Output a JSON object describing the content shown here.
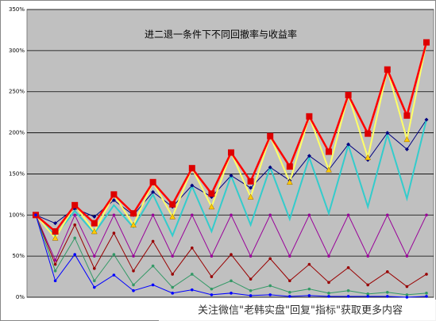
{
  "chart_data": {
    "type": "line",
    "title": "进二退一条件下不同回撤率与收益率",
    "watermark": "关注微信\"老韩实盘\"回复\"指标\"获取更多内容",
    "categories": [
      null,
      null,
      null,
      null,
      null,
      null,
      null,
      null,
      null,
      null,
      null,
      null,
      null,
      null,
      null,
      null,
      null,
      null,
      null,
      null,
      null
    ],
    "ylim": [
      0,
      350
    ],
    "yticks": [
      {
        "value": 0,
        "label": "0%"
      },
      {
        "value": 50,
        "label": "50%"
      },
      {
        "value": 100,
        "label": "100%"
      },
      {
        "value": 150,
        "label": "150%"
      },
      {
        "value": 200,
        "label": "200%"
      },
      {
        "value": 250,
        "label": "250%"
      },
      {
        "value": 300,
        "label": "300%"
      },
      {
        "value": 350,
        "label": "350%"
      }
    ],
    "grid": true,
    "series": [
      {
        "color": "#000080",
        "marker": "diamond",
        "values": [
          100,
          90,
          108,
          98,
          118,
          100,
          128,
          110,
          136,
          122,
          148,
          133,
          158,
          142,
          172,
          155,
          186,
          167,
          200,
          180,
          216
        ]
      },
      {
        "color": "#33cccc",
        "marker": "none",
        "values": [
          100,
          75,
          105,
          78,
          112,
          85,
          125,
          75,
          135,
          80,
          148,
          88,
          158,
          95,
          170,
          102,
          185,
          110,
          198,
          120,
          216
        ]
      },
      {
        "color": "#ffff66",
        "marker": "triangle",
        "values": [
          100,
          72,
          112,
          80,
          125,
          88,
          140,
          98,
          157,
          110,
          176,
          122,
          196,
          140,
          220,
          155,
          246,
          170,
          277,
          192,
          310
        ]
      },
      {
        "color": "#ff0000",
        "marker": "square",
        "values": [
          100,
          80,
          112,
          90,
          125,
          102,
          140,
          113,
          157,
          126,
          176,
          141,
          196,
          159,
          220,
          177,
          246,
          199,
          277,
          221,
          310
        ]
      },
      {
        "color": "#990099",
        "marker": "dot",
        "values": [
          100,
          45,
          100,
          50,
          100,
          50,
          100,
          50,
          100,
          50,
          100,
          50,
          100,
          50,
          100,
          50,
          100,
          50,
          100,
          50,
          100
        ]
      },
      {
        "color": "#990000",
        "marker": "dot",
        "values": [
          100,
          40,
          88,
          35,
          78,
          32,
          68,
          28,
          60,
          25,
          52,
          22,
          47,
          20,
          40,
          18,
          36,
          15,
          31,
          13,
          28
        ]
      },
      {
        "color": "#339966",
        "marker": "dot",
        "values": [
          100,
          32,
          72,
          20,
          52,
          15,
          38,
          12,
          28,
          10,
          20,
          8,
          14,
          6,
          10,
          5,
          8,
          4,
          6,
          3,
          5
        ]
      },
      {
        "color": "#0000ff",
        "marker": "dot",
        "values": [
          100,
          20,
          52,
          12,
          27,
          8,
          15,
          5,
          9,
          3,
          5,
          2,
          3,
          1,
          2,
          1,
          1,
          1,
          1,
          0,
          1
        ]
      }
    ]
  }
}
